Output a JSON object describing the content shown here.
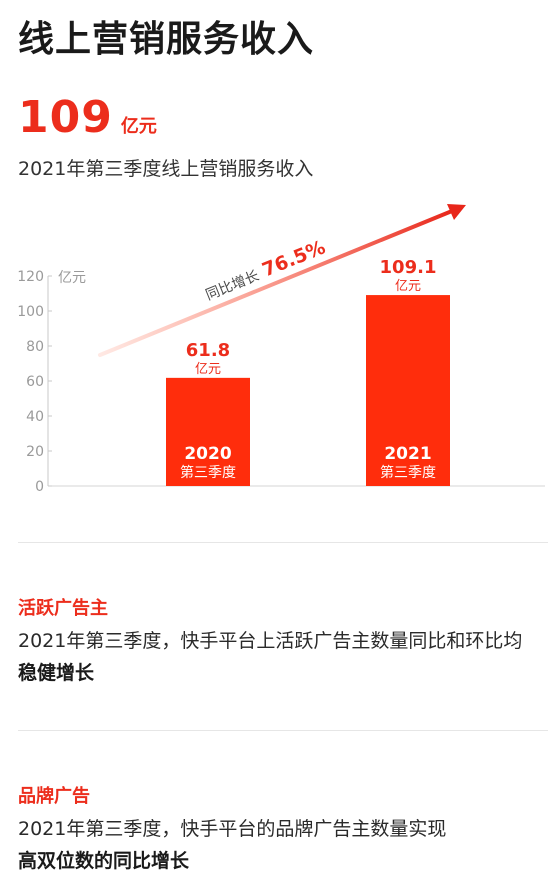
{
  "title": "线上营销服务收入",
  "hero": {
    "value": "109",
    "unit": "亿元"
  },
  "subtitle": "2021年第三季度线上营销服务收入",
  "chart_data": {
    "type": "bar",
    "categories": [
      "2020 第三季度",
      "2021 第三季度"
    ],
    "bar_years": [
      "2020",
      "2021"
    ],
    "bar_quarters": [
      "第三季度",
      "第三季度"
    ],
    "values": [
      61.8,
      109.1
    ],
    "value_labels": [
      "61.8",
      "109.1"
    ],
    "value_units": [
      "亿元",
      "亿元"
    ],
    "yunit": "亿元",
    "ylim": [
      0,
      120
    ],
    "yticks": [
      0,
      20,
      40,
      60,
      80,
      100,
      120
    ],
    "growth_label": "同比增长",
    "growth_value": "76.5%",
    "colors": {
      "bar": "#ff2d0c",
      "label": "#ec2d1c"
    }
  },
  "sections": [
    {
      "title": "活跃广告主",
      "body": "2021年第三季度，快手平台上活跃广告主数量同比和环比均",
      "bold": " 稳健增长"
    },
    {
      "title": "品牌广告",
      "body": "2021年第三季度，快手平台的品牌广告主数量实现",
      "bold": "高双位数的同比增长"
    }
  ]
}
